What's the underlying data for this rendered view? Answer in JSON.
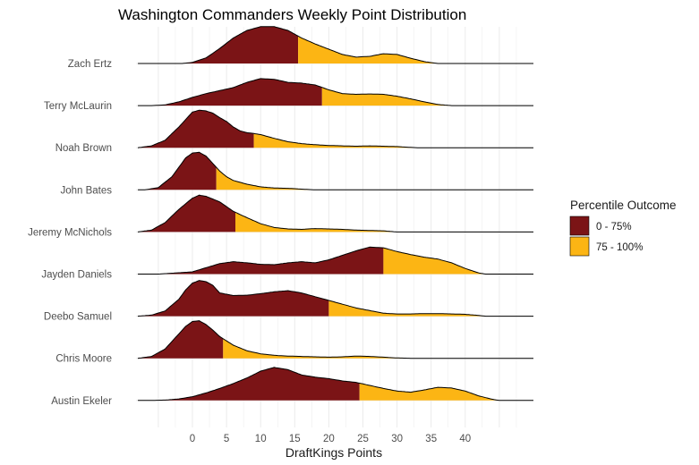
{
  "chart_data": {
    "type": "ridgeline",
    "title": "Washington Commanders Weekly Point Distribution",
    "xlabel": "DraftKings Points",
    "ylabel": "",
    "xlim": [
      -8,
      50
    ],
    "x_ticks": [
      0,
      5,
      10,
      15,
      20,
      25,
      30,
      35,
      40
    ],
    "grid": true,
    "legend": {
      "title": "Percentile Outcome",
      "position": "right",
      "items": [
        {
          "label": "0 - 75%",
          "color": "#7b1416"
        },
        {
          "label": "75 - 100%",
          "color": "#fcb514"
        }
      ]
    },
    "colors": {
      "low": "#7b1416",
      "high": "#fcb514",
      "grid": "#ebebeb",
      "outline": "#000000"
    },
    "players": [
      {
        "name": "Zach Ertz",
        "p75": 15.5,
        "x_start": -8,
        "x_end": 50,
        "x": [
          -1.5,
          0,
          2,
          4,
          6,
          8,
          10,
          12,
          14,
          16,
          18,
          20,
          22,
          24,
          26,
          28,
          30,
          32,
          34,
          36
        ],
        "dens": [
          0,
          0.03,
          0.15,
          0.4,
          0.68,
          0.88,
          0.98,
          0.98,
          0.88,
          0.68,
          0.52,
          0.38,
          0.24,
          0.17,
          0.19,
          0.26,
          0.24,
          0.14,
          0.05,
          0
        ]
      },
      {
        "name": "Terry McLaurin",
        "p75": 19,
        "x_start": -8,
        "x_end": 50,
        "x": [
          -6,
          -4,
          -2,
          0,
          2,
          4,
          6,
          8,
          10,
          12,
          14,
          16,
          18,
          20,
          22,
          24,
          26,
          28,
          30,
          32,
          34,
          36,
          38
        ],
        "dens": [
          0,
          0.02,
          0.1,
          0.22,
          0.32,
          0.4,
          0.48,
          0.62,
          0.72,
          0.7,
          0.62,
          0.6,
          0.55,
          0.42,
          0.32,
          0.3,
          0.31,
          0.3,
          0.25,
          0.18,
          0.1,
          0.03,
          0
        ]
      },
      {
        "name": "Noah Brown",
        "p75": 9,
        "x_start": -8,
        "x_end": 50,
        "x": [
          -8,
          -6,
          -4,
          -2,
          -1,
          0,
          1,
          2,
          3,
          4,
          5,
          6,
          7,
          8,
          9,
          10,
          12,
          14,
          16,
          18,
          20,
          22,
          24,
          26,
          28,
          30,
          32,
          33
        ],
        "dens": [
          0,
          0.05,
          0.2,
          0.55,
          0.75,
          0.95,
          1.0,
          0.98,
          0.92,
          0.8,
          0.7,
          0.55,
          0.45,
          0.4,
          0.38,
          0.35,
          0.25,
          0.16,
          0.11,
          0.08,
          0.06,
          0.05,
          0.04,
          0.05,
          0.04,
          0.03,
          0.01,
          0
        ]
      },
      {
        "name": "John Bates",
        "p75": 3.5,
        "x_start": -8,
        "x_end": 50,
        "x": [
          -7,
          -5,
          -3,
          -2,
          -1,
          0,
          1,
          2,
          3,
          4,
          5,
          6,
          8,
          10,
          12,
          14,
          16,
          18
        ],
        "dens": [
          0,
          0.06,
          0.35,
          0.6,
          0.85,
          0.98,
          1.0,
          0.9,
          0.7,
          0.5,
          0.35,
          0.25,
          0.15,
          0.08,
          0.05,
          0.04,
          0.02,
          0
        ]
      },
      {
        "name": "Jeremy McNichols",
        "p75": 6.3,
        "x_start": -8,
        "x_end": 50,
        "x": [
          -8,
          -6,
          -4,
          -2,
          0,
          1,
          2,
          4,
          6,
          8,
          10,
          12,
          14,
          16,
          18,
          20,
          22,
          24,
          26,
          28,
          30
        ],
        "dens": [
          0,
          0.05,
          0.25,
          0.6,
          0.9,
          0.98,
          0.95,
          0.8,
          0.55,
          0.38,
          0.22,
          0.12,
          0.08,
          0.07,
          0.09,
          0.08,
          0.07,
          0.05,
          0.04,
          0.03,
          0
        ]
      },
      {
        "name": "Jayden Daniels",
        "p75": 28,
        "x_start": -8,
        "x_end": 50,
        "x": [
          -5,
          0,
          2,
          4,
          6,
          8,
          10,
          12,
          14,
          16,
          18,
          20,
          22,
          24,
          26,
          28,
          30,
          32,
          34,
          36,
          38,
          40,
          42,
          43
        ],
        "dens": [
          0,
          0.06,
          0.17,
          0.28,
          0.33,
          0.3,
          0.26,
          0.25,
          0.3,
          0.33,
          0.3,
          0.38,
          0.5,
          0.62,
          0.72,
          0.7,
          0.6,
          0.52,
          0.45,
          0.4,
          0.3,
          0.15,
          0.03,
          0
        ]
      },
      {
        "name": "Deebo Samuel",
        "p75": 20,
        "x_start": -8,
        "x_end": 50,
        "x": [
          -8,
          -6,
          -4,
          -2,
          -1,
          0,
          1,
          2,
          3,
          4,
          6,
          8,
          10,
          12,
          14,
          16,
          18,
          20,
          22,
          24,
          26,
          28,
          30,
          32,
          34,
          36,
          38,
          40,
          42,
          43
        ],
        "dens": [
          0,
          0.03,
          0.14,
          0.45,
          0.7,
          0.88,
          0.95,
          0.92,
          0.82,
          0.62,
          0.55,
          0.56,
          0.6,
          0.65,
          0.68,
          0.62,
          0.52,
          0.42,
          0.32,
          0.22,
          0.15,
          0.08,
          0.06,
          0.06,
          0.07,
          0.07,
          0.06,
          0.05,
          0.02,
          0
        ]
      },
      {
        "name": "Chris Moore",
        "p75": 4.5,
        "x_start": -8,
        "x_end": 50,
        "x": [
          -8,
          -6,
          -4,
          -2,
          -1,
          0,
          1,
          2,
          3,
          4,
          6,
          8,
          10,
          12,
          14,
          16,
          18,
          20,
          22,
          24,
          26,
          28,
          30,
          32
        ],
        "dens": [
          0,
          0.05,
          0.25,
          0.65,
          0.85,
          0.98,
          1.0,
          0.9,
          0.75,
          0.58,
          0.35,
          0.2,
          0.12,
          0.08,
          0.06,
          0.05,
          0.04,
          0.03,
          0.04,
          0.06,
          0.05,
          0.03,
          0.01,
          0
        ]
      },
      {
        "name": "Austin Ekeler",
        "p75": 24.5,
        "x_start": -8,
        "x_end": 50,
        "x": [
          -6,
          -4,
          -2,
          0,
          2,
          4,
          6,
          8,
          10,
          12,
          14,
          16,
          18,
          20,
          22,
          24,
          26,
          28,
          30,
          32,
          34,
          36,
          38,
          40,
          42,
          44,
          45
        ],
        "dens": [
          0,
          0.01,
          0.04,
          0.1,
          0.2,
          0.32,
          0.45,
          0.6,
          0.78,
          0.88,
          0.82,
          0.68,
          0.62,
          0.58,
          0.52,
          0.48,
          0.4,
          0.32,
          0.25,
          0.22,
          0.28,
          0.35,
          0.33,
          0.25,
          0.12,
          0.03,
          0
        ]
      }
    ]
  }
}
